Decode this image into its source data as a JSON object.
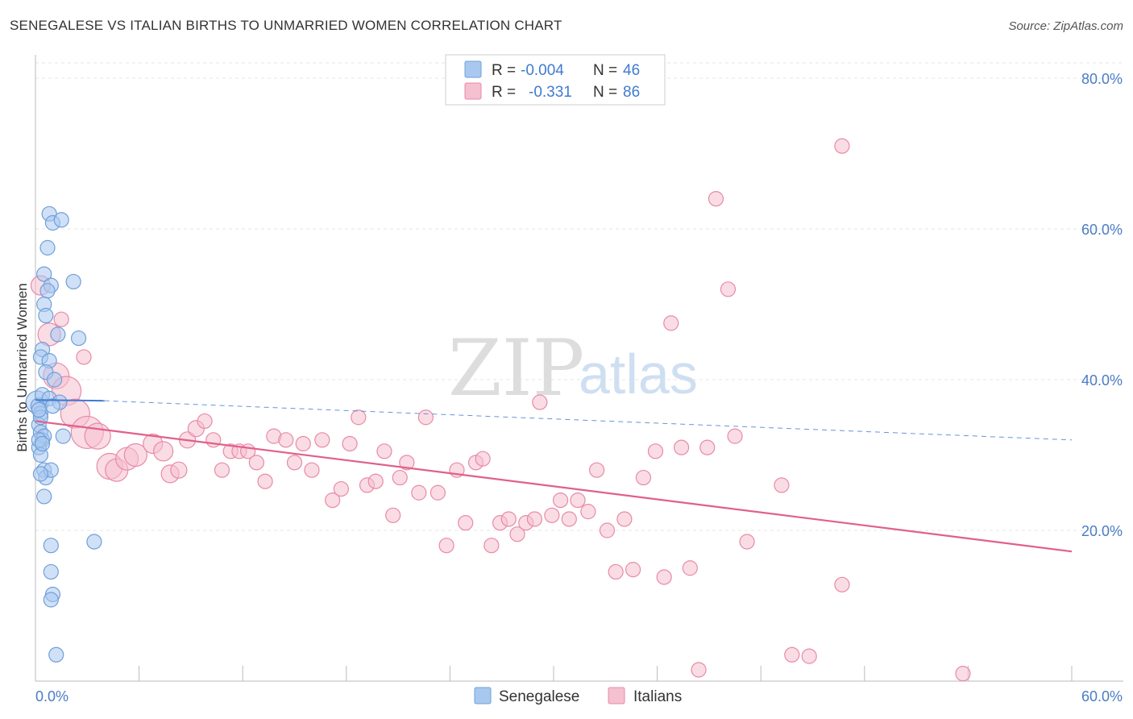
{
  "title": "SENEGALESE VS ITALIAN BIRTHS TO UNMARRIED WOMEN CORRELATION CHART",
  "source": "Source: ZipAtlas.com",
  "watermark": {
    "zip": "ZIP",
    "atlas": "atlas"
  },
  "legend": {
    "rows": [
      {
        "r_label": "R =",
        "r_value": "-0.004",
        "n_label": "N =",
        "n_value": "46",
        "color": "#a9c8f0",
        "stroke": "#6f9fd8"
      },
      {
        "r_label": "R =",
        "r_value": "-0.331",
        "n_label": "N =",
        "n_value": "86",
        "color": "#f5c0d0",
        "stroke": "#e88aa8"
      }
    ]
  },
  "bottom_legend": [
    {
      "label": "Senegalese",
      "color": "#a9c8f0",
      "stroke": "#6f9fd8"
    },
    {
      "label": "Italians",
      "color": "#f5c0d0",
      "stroke": "#e88aa8"
    }
  ],
  "chart_data": {
    "type": "scatter",
    "title": "SENEGALESE VS ITALIAN BIRTHS TO UNMARRIED WOMEN CORRELATION CHART",
    "xlabel": "",
    "ylabel": "Births to Unmarried Women",
    "xlim": [
      0,
      60
    ],
    "ylim": [
      0,
      85
    ],
    "x_tick_labels": [
      {
        "value": 0,
        "label": "0.0%"
      },
      {
        "value": 60,
        "label": "60.0%"
      }
    ],
    "x_minor_ticks": [
      6,
      12,
      18,
      24,
      30,
      36,
      42,
      48,
      54,
      60
    ],
    "y_ticks": [
      {
        "value": 20,
        "label": "20.0%"
      },
      {
        "value": 40,
        "label": "40.0%"
      },
      {
        "value": 60,
        "label": "60.0%"
      },
      {
        "value": 80,
        "label": "80.0%"
      }
    ],
    "grid": true,
    "series": [
      {
        "name": "Senegalese",
        "color": "#a9c8f0",
        "stroke": "#6f9fd8",
        "trend": {
          "x0": 0,
          "y0": 37.3,
          "x1": 4,
          "y1": 37.2,
          "x_dash_end": 60,
          "y_dash_end": 32.0,
          "color": "#3f7bd0"
        },
        "points": [
          {
            "x": 0.1,
            "y": 37.0,
            "s": 14
          },
          {
            "x": 0.2,
            "y": 36.5,
            "s": 10
          },
          {
            "x": 0.3,
            "y": 35.5,
            "s": 9
          },
          {
            "x": 0.2,
            "y": 34.0,
            "s": 9
          },
          {
            "x": 0.3,
            "y": 33.0,
            "s": 9
          },
          {
            "x": 0.4,
            "y": 32.0,
            "s": 9
          },
          {
            "x": 0.2,
            "y": 31.0,
            "s": 9
          },
          {
            "x": 0.3,
            "y": 30.0,
            "s": 9
          },
          {
            "x": 0.5,
            "y": 28.0,
            "s": 9
          },
          {
            "x": 0.6,
            "y": 27.0,
            "s": 9
          },
          {
            "x": 0.5,
            "y": 24.5,
            "s": 9
          },
          {
            "x": 0.8,
            "y": 62.0,
            "s": 9
          },
          {
            "x": 1.0,
            "y": 60.8,
            "s": 9
          },
          {
            "x": 1.5,
            "y": 61.2,
            "s": 9
          },
          {
            "x": 0.7,
            "y": 57.5,
            "s": 9
          },
          {
            "x": 0.5,
            "y": 54.0,
            "s": 9
          },
          {
            "x": 0.9,
            "y": 52.5,
            "s": 9
          },
          {
            "x": 0.7,
            "y": 51.8,
            "s": 9
          },
          {
            "x": 0.5,
            "y": 50.0,
            "s": 9
          },
          {
            "x": 0.6,
            "y": 48.5,
            "s": 9
          },
          {
            "x": 1.3,
            "y": 46.0,
            "s": 9
          },
          {
            "x": 2.2,
            "y": 53.0,
            "s": 9
          },
          {
            "x": 2.5,
            "y": 45.5,
            "s": 9
          },
          {
            "x": 0.4,
            "y": 44.0,
            "s": 9
          },
          {
            "x": 0.3,
            "y": 43.0,
            "s": 9
          },
          {
            "x": 0.8,
            "y": 42.5,
            "s": 9
          },
          {
            "x": 0.6,
            "y": 41.0,
            "s": 9
          },
          {
            "x": 1.1,
            "y": 40.0,
            "s": 9
          },
          {
            "x": 0.4,
            "y": 38.0,
            "s": 9
          },
          {
            "x": 0.8,
            "y": 37.5,
            "s": 9
          },
          {
            "x": 1.4,
            "y": 37.0,
            "s": 9
          },
          {
            "x": 1.0,
            "y": 36.5,
            "s": 9
          },
          {
            "x": 0.3,
            "y": 35.0,
            "s": 9
          },
          {
            "x": 0.5,
            "y": 32.5,
            "s": 9
          },
          {
            "x": 1.6,
            "y": 32.5,
            "s": 9
          },
          {
            "x": 0.2,
            "y": 32.0,
            "s": 9
          },
          {
            "x": 0.4,
            "y": 31.5,
            "s": 9
          },
          {
            "x": 0.9,
            "y": 28.0,
            "s": 9
          },
          {
            "x": 0.3,
            "y": 27.5,
            "s": 9
          },
          {
            "x": 0.9,
            "y": 18.0,
            "s": 9
          },
          {
            "x": 3.4,
            "y": 18.5,
            "s": 9
          },
          {
            "x": 0.9,
            "y": 14.5,
            "s": 9
          },
          {
            "x": 1.0,
            "y": 11.5,
            "s": 9
          },
          {
            "x": 0.9,
            "y": 10.8,
            "s": 9
          },
          {
            "x": 1.2,
            "y": 3.5,
            "s": 9
          },
          {
            "x": 0.2,
            "y": 36.0,
            "s": 9
          }
        ]
      },
      {
        "name": "Italians",
        "color": "#f5c0d0",
        "stroke": "#e88aa8",
        "trend": {
          "x0": 0,
          "y0": 34.5,
          "x1": 60,
          "y1": 17.2,
          "color": "#e0608a"
        },
        "points": [
          {
            "x": 0.3,
            "y": 52.5,
            "s": 12
          },
          {
            "x": 0.8,
            "y": 46.0,
            "s": 14
          },
          {
            "x": 1.2,
            "y": 40.5,
            "s": 16
          },
          {
            "x": 1.8,
            "y": 38.5,
            "s": 18
          },
          {
            "x": 2.3,
            "y": 35.5,
            "s": 18
          },
          {
            "x": 3.0,
            "y": 33.0,
            "s": 20
          },
          {
            "x": 3.6,
            "y": 32.5,
            "s": 16
          },
          {
            "x": 4.3,
            "y": 28.5,
            "s": 16
          },
          {
            "x": 4.7,
            "y": 28.0,
            "s": 14
          },
          {
            "x": 5.3,
            "y": 29.5,
            "s": 14
          },
          {
            "x": 5.8,
            "y": 30.0,
            "s": 14
          },
          {
            "x": 6.8,
            "y": 31.5,
            "s": 12
          },
          {
            "x": 7.4,
            "y": 30.5,
            "s": 12
          },
          {
            "x": 7.8,
            "y": 27.5,
            "s": 11
          },
          {
            "x": 8.3,
            "y": 28.0,
            "s": 10
          },
          {
            "x": 8.8,
            "y": 32.0,
            "s": 10
          },
          {
            "x": 9.3,
            "y": 33.5,
            "s": 10
          },
          {
            "x": 9.8,
            "y": 34.5,
            "s": 9
          },
          {
            "x": 10.3,
            "y": 32.0,
            "s": 9
          },
          {
            "x": 10.8,
            "y": 28.0,
            "s": 9
          },
          {
            "x": 11.3,
            "y": 30.5,
            "s": 9
          },
          {
            "x": 11.8,
            "y": 30.5,
            "s": 9
          },
          {
            "x": 12.3,
            "y": 30.5,
            "s": 9
          },
          {
            "x": 12.8,
            "y": 29.0,
            "s": 9
          },
          {
            "x": 13.3,
            "y": 26.5,
            "s": 9
          },
          {
            "x": 13.8,
            "y": 32.5,
            "s": 9
          },
          {
            "x": 14.5,
            "y": 32.0,
            "s": 9
          },
          {
            "x": 15.0,
            "y": 29.0,
            "s": 9
          },
          {
            "x": 15.5,
            "y": 31.5,
            "s": 9
          },
          {
            "x": 16.0,
            "y": 28.0,
            "s": 9
          },
          {
            "x": 16.6,
            "y": 32.0,
            "s": 9
          },
          {
            "x": 17.2,
            "y": 24.0,
            "s": 9
          },
          {
            "x": 17.7,
            "y": 25.5,
            "s": 9
          },
          {
            "x": 18.2,
            "y": 31.5,
            "s": 9
          },
          {
            "x": 18.7,
            "y": 35.0,
            "s": 9
          },
          {
            "x": 19.2,
            "y": 26.0,
            "s": 9
          },
          {
            "x": 19.7,
            "y": 26.5,
            "s": 9
          },
          {
            "x": 20.2,
            "y": 30.5,
            "s": 9
          },
          {
            "x": 20.7,
            "y": 22.0,
            "s": 9
          },
          {
            "x": 21.1,
            "y": 27.0,
            "s": 9
          },
          {
            "x": 21.5,
            "y": 29.0,
            "s": 9
          },
          {
            "x": 22.2,
            "y": 25.0,
            "s": 9
          },
          {
            "x": 22.6,
            "y": 35.0,
            "s": 9
          },
          {
            "x": 23.3,
            "y": 25.0,
            "s": 9
          },
          {
            "x": 23.8,
            "y": 18.0,
            "s": 9
          },
          {
            "x": 24.4,
            "y": 28.0,
            "s": 9
          },
          {
            "x": 24.9,
            "y": 21.0,
            "s": 9
          },
          {
            "x": 25.5,
            "y": 29.0,
            "s": 9
          },
          {
            "x": 25.9,
            "y": 29.5,
            "s": 9
          },
          {
            "x": 26.4,
            "y": 18.0,
            "s": 9
          },
          {
            "x": 26.9,
            "y": 21.0,
            "s": 9
          },
          {
            "x": 27.4,
            "y": 21.5,
            "s": 9
          },
          {
            "x": 27.9,
            "y": 19.5,
            "s": 9
          },
          {
            "x": 28.4,
            "y": 21.0,
            "s": 9
          },
          {
            "x": 28.9,
            "y": 21.5,
            "s": 9
          },
          {
            "x": 29.2,
            "y": 37.0,
            "s": 9
          },
          {
            "x": 29.9,
            "y": 22.0,
            "s": 9
          },
          {
            "x": 30.4,
            "y": 24.0,
            "s": 9
          },
          {
            "x": 30.9,
            "y": 21.5,
            "s": 9
          },
          {
            "x": 31.4,
            "y": 24.0,
            "s": 9
          },
          {
            "x": 32.0,
            "y": 22.5,
            "s": 9
          },
          {
            "x": 32.5,
            "y": 28.0,
            "s": 9
          },
          {
            "x": 33.1,
            "y": 20.0,
            "s": 9
          },
          {
            "x": 33.6,
            "y": 14.5,
            "s": 9
          },
          {
            "x": 34.1,
            "y": 21.5,
            "s": 9
          },
          {
            "x": 34.6,
            "y": 14.8,
            "s": 9
          },
          {
            "x": 35.2,
            "y": 27.0,
            "s": 9
          },
          {
            "x": 35.9,
            "y": 30.5,
            "s": 9
          },
          {
            "x": 36.4,
            "y": 13.8,
            "s": 9
          },
          {
            "x": 36.8,
            "y": 47.5,
            "s": 9
          },
          {
            "x": 37.4,
            "y": 31.0,
            "s": 9
          },
          {
            "x": 37.9,
            "y": 15.0,
            "s": 9
          },
          {
            "x": 38.4,
            "y": 1.5,
            "s": 9
          },
          {
            "x": 38.9,
            "y": 31.0,
            "s": 9
          },
          {
            "x": 39.4,
            "y": 64.0,
            "s": 9
          },
          {
            "x": 40.1,
            "y": 52.0,
            "s": 9
          },
          {
            "x": 40.5,
            "y": 32.5,
            "s": 9
          },
          {
            "x": 41.2,
            "y": 18.5,
            "s": 9
          },
          {
            "x": 43.2,
            "y": 26.0,
            "s": 9
          },
          {
            "x": 43.8,
            "y": 3.5,
            "s": 9
          },
          {
            "x": 44.8,
            "y": 3.3,
            "s": 9
          },
          {
            "x": 46.7,
            "y": 12.8,
            "s": 9
          },
          {
            "x": 46.7,
            "y": 71.0,
            "s": 9
          },
          {
            "x": 53.7,
            "y": 1.0,
            "s": 9
          },
          {
            "x": 1.5,
            "y": 48.0,
            "s": 9
          },
          {
            "x": 2.8,
            "y": 43.0,
            "s": 9
          }
        ]
      }
    ]
  }
}
